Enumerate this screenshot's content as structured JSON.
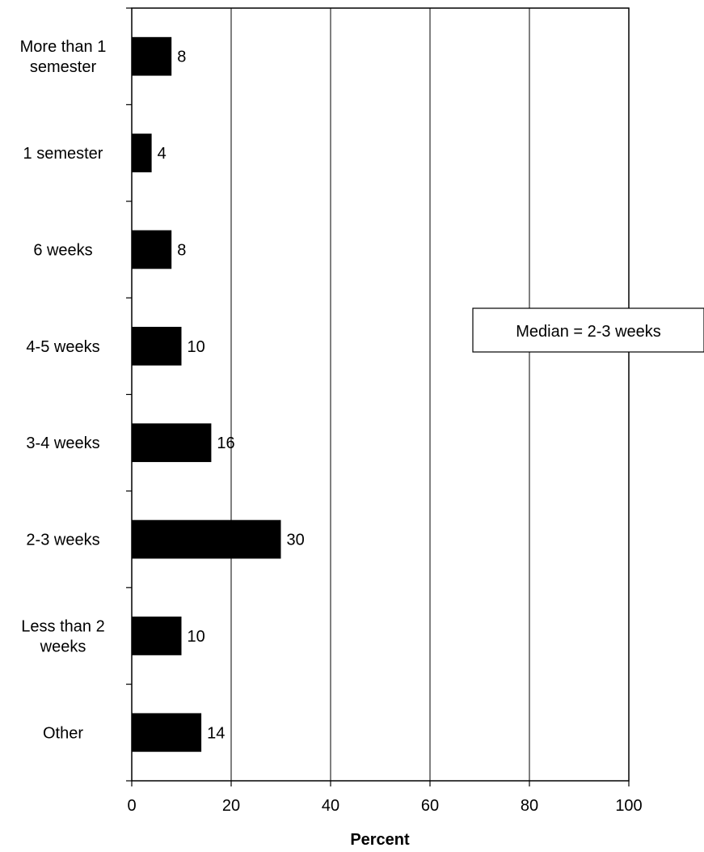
{
  "chart_data": {
    "type": "bar",
    "orientation": "horizontal",
    "categories": [
      [
        "More than 1",
        "semester"
      ],
      [
        "1 semester"
      ],
      [
        "6 weeks"
      ],
      [
        "4-5 weeks"
      ],
      [
        "3-4 weeks"
      ],
      [
        "2-3 weeks"
      ],
      [
        "Less than 2",
        "weeks"
      ],
      [
        "Other"
      ]
    ],
    "values": [
      8,
      4,
      8,
      10,
      16,
      30,
      10,
      14
    ],
    "xlabel": "Percent",
    "xlim": [
      0,
      100
    ],
    "xticks": [
      0,
      20,
      40,
      60,
      80,
      100
    ],
    "grid": "vertical",
    "legend": "none",
    "annotation": "Median = 2-3 weeks",
    "bar_color": "#000000"
  }
}
